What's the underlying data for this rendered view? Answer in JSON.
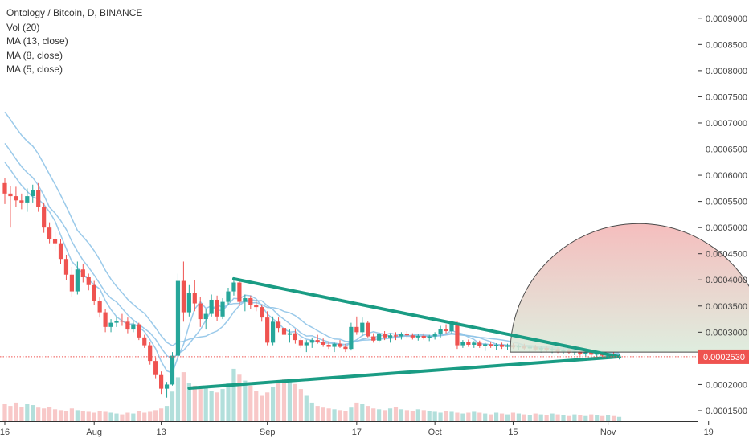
{
  "chart_data": {
    "type": "candlestick",
    "title": "Ontology / Bitcoin, D, BINANCE",
    "indicators": [
      "Vol (20)",
      "MA (13, close)",
      "MA (8, close)",
      "MA (5, close)"
    ],
    "y_ticks": [
      "0.0009000",
      "0.0008500",
      "0.0008000",
      "0.0007500",
      "0.0007000",
      "0.0006500",
      "0.0006000",
      "0.0005500",
      "0.0005000",
      "0.0004500",
      "0.0004000",
      "0.0003500",
      "0.0003000",
      "0.0002500",
      "0.0002000",
      "0.0001500"
    ],
    "y_tick_values": [
      0.0009,
      0.00085,
      0.0008,
      0.00075,
      0.0007,
      0.00065,
      0.0006,
      0.00055,
      0.0005,
      0.00045,
      0.0004,
      0.00035,
      0.0003,
      0.00025,
      0.0002,
      0.00015
    ],
    "ylim": [
      0.00013,
      0.000935
    ],
    "x_ticks": [
      {
        "label": "16",
        "day": 0
      },
      {
        "label": "Aug",
        "day": 16
      },
      {
        "label": "13",
        "day": 28
      },
      {
        "label": "Sep",
        "day": 47
      },
      {
        "label": "17",
        "day": 63
      },
      {
        "label": "Oct",
        "day": 77
      },
      {
        "label": "15",
        "day": 91
      },
      {
        "label": "Nov",
        "day": 108
      },
      {
        "label": "19",
        "day": 126
      }
    ],
    "last_price_label": "0.0002530",
    "last_price": 0.000253,
    "colors": {
      "up": "#26a69a",
      "down": "#ef5350",
      "ma": "#90c4e8",
      "trend": "#1a9c84",
      "last": "#ef5350",
      "label_bg": "#ef5350",
      "circle_top": "#f3b2b2",
      "circle_bottom": "#d9ead9",
      "circle_stroke": "#4a4a4a",
      "vol_up": "#b2dfdb",
      "vol_down": "#f8c8c8"
    },
    "triangle": {
      "upper": [
        [
          41,
          0.000402
        ],
        [
          110,
          0.000253
        ]
      ],
      "lower": [
        [
          33,
          0.000193
        ],
        [
          110,
          0.000253
        ]
      ]
    },
    "half_circle": {
      "center_day": 113.5,
      "center_value": 0.000262,
      "radius_days": 23
    },
    "candles": [
      [
        0.000585,
        0.000595,
        0.000545,
        0.000565
      ],
      [
        0.000565,
        0.00058,
        0.0005,
        0.00056
      ],
      [
        0.00056,
        0.000578,
        0.00054,
        0.000552
      ],
      [
        0.000552,
        0.000565,
        0.000535,
        0.000548
      ],
      [
        0.000548,
        0.000575,
        0.00053,
        0.00056
      ],
      [
        0.00056,
        0.000582,
        0.000548,
        0.000572
      ],
      [
        0.000572,
        0.000585,
        0.00053,
        0.00054
      ],
      [
        0.00054,
        0.000548,
        0.00049,
        0.0005
      ],
      [
        0.0005,
        0.00051,
        0.00047,
        0.000478
      ],
      [
        0.000478,
        0.000492,
        0.000455,
        0.00047
      ],
      [
        0.00047,
        0.000478,
        0.00043,
        0.00044
      ],
      [
        0.00044,
        0.000448,
        0.0004,
        0.00041
      ],
      [
        0.00041,
        0.000425,
        0.000368,
        0.000378
      ],
      [
        0.000378,
        0.000435,
        0.000372,
        0.00042
      ],
      [
        0.00042,
        0.00043,
        0.000395,
        0.000405
      ],
      [
        0.000405,
        0.000412,
        0.00038,
        0.00039
      ],
      [
        0.00039,
        0.000398,
        0.000352,
        0.00036
      ],
      [
        0.00036,
        0.000368,
        0.000328,
        0.000338
      ],
      [
        0.000338,
        0.000345,
        0.0003,
        0.00031
      ],
      [
        0.00031,
        0.000325,
        0.0003,
        0.000318
      ],
      [
        0.000318,
        0.00033,
        0.00031,
        0.000322
      ],
      [
        0.000322,
        0.000335,
        0.000312,
        0.00032
      ],
      [
        0.00032,
        0.000328,
        0.000298,
        0.000305
      ],
      [
        0.000305,
        0.000322,
        0.0003,
        0.000315
      ],
      [
        0.000315,
        0.000318,
        0.000285,
        0.00029
      ],
      [
        0.00029,
        0.000295,
        0.00027,
        0.000275
      ],
      [
        0.000275,
        0.000282,
        0.000238,
        0.000245
      ],
      [
        0.000245,
        0.000252,
        0.000212,
        0.000218
      ],
      [
        0.000218,
        0.000225,
        0.000182,
        0.000192
      ],
      [
        0.000192,
        0.000205,
        0.000175,
        0.0002
      ],
      [
        0.0002,
        0.000262,
        0.000198,
        0.000255
      ],
      [
        0.000255,
        0.000412,
        0.00025,
        0.000398
      ],
      [
        0.000398,
        0.000435,
        0.00032,
        0.000338
      ],
      [
        0.000338,
        0.00039,
        0.00033,
        0.000375
      ],
      [
        0.000375,
        0.0004,
        0.00034,
        0.000355
      ],
      [
        0.000355,
        0.000368,
        0.00031,
        0.000325
      ],
      [
        0.000325,
        0.000345,
        0.000305,
        0.000335
      ],
      [
        0.000335,
        0.000372,
        0.00033,
        0.000362
      ],
      [
        0.000362,
        0.00037,
        0.000322,
        0.00033
      ],
      [
        0.00033,
        0.000365,
        0.000325,
        0.000358
      ],
      [
        0.000358,
        0.000385,
        0.000352,
        0.000378
      ],
      [
        0.000378,
        0.000402,
        0.00037,
        0.000395
      ],
      [
        0.000395,
        0.000402,
        0.00035,
        0.000358
      ],
      [
        0.000358,
        0.000372,
        0.00034,
        0.000365
      ],
      [
        0.000365,
        0.00037,
        0.000345,
        0.000352
      ],
      [
        0.000352,
        0.000362,
        0.00034,
        0.000348
      ],
      [
        0.000348,
        0.000352,
        0.00032,
        0.000328
      ],
      [
        0.000328,
        0.00034,
        0.000275,
        0.00028
      ],
      [
        0.00028,
        0.00033,
        0.000275,
        0.00032
      ],
      [
        0.00032,
        0.000328,
        0.0003,
        0.000308
      ],
      [
        0.000308,
        0.000318,
        0.00029,
        0.000295
      ],
      [
        0.000295,
        0.000305,
        0.00028,
        0.000298
      ],
      [
        0.000298,
        0.000305,
        0.000278,
        0.000285
      ],
      [
        0.000285,
        0.00029,
        0.00027,
        0.000275
      ],
      [
        0.000275,
        0.000285,
        0.000262,
        0.00028
      ],
      [
        0.00028,
        0.00029,
        0.00027,
        0.000285
      ],
      [
        0.000285,
        0.000295,
        0.000278,
        0.000282
      ],
      [
        0.000282,
        0.000288,
        0.000272,
        0.000276
      ],
      [
        0.000276,
        0.000282,
        0.000268,
        0.000272
      ],
      [
        0.000272,
        0.00028,
        0.000262,
        0.000278
      ],
      [
        0.000278,
        0.000285,
        0.00027,
        0.000272
      ],
      [
        0.000272,
        0.000278,
        0.000262,
        0.000268
      ],
      [
        0.000268,
        0.000318,
        0.000265,
        0.00031
      ],
      [
        0.00031,
        0.00033,
        0.000295,
        0.0003
      ],
      [
        0.0003,
        0.000328,
        0.000292,
        0.000318
      ],
      [
        0.000318,
        0.000322,
        0.00029,
        0.000292
      ],
      [
        0.000292,
        0.000298,
        0.00028,
        0.000284
      ],
      [
        0.000284,
        0.0003,
        0.00028,
        0.000296
      ],
      [
        0.000296,
        0.000302,
        0.000285,
        0.00029
      ],
      [
        0.00029,
        0.000298,
        0.00028,
        0.000294
      ],
      [
        0.000294,
        0.0003,
        0.000285,
        0.000292
      ],
      [
        0.000292,
        0.0003,
        0.000286,
        0.000296
      ],
      [
        0.000296,
        0.000302,
        0.000288,
        0.000294
      ],
      [
        0.000294,
        0.000298,
        0.000286,
        0.00029
      ],
      [
        0.00029,
        0.000296,
        0.000284,
        0.000293
      ],
      [
        0.000293,
        0.000298,
        0.000286,
        0.000289
      ],
      [
        0.000289,
        0.000295,
        0.000283,
        0.000292
      ],
      [
        0.000292,
        0.0003,
        0.000286,
        0.000296
      ],
      [
        0.000296,
        0.000312,
        0.00029,
        0.000306
      ],
      [
        0.000306,
        0.000315,
        0.000298,
        0.000302
      ],
      [
        0.000302,
        0.000322,
        0.000298,
        0.000318
      ],
      [
        0.000318,
        0.00032,
        0.000268,
        0.000275
      ],
      [
        0.000275,
        0.000285,
        0.00027,
        0.000282
      ],
      [
        0.000282,
        0.000286,
        0.000272,
        0.000276
      ],
      [
        0.000276,
        0.000283,
        0.00027,
        0.00028
      ],
      [
        0.00028,
        0.000284,
        0.00027,
        0.000274
      ],
      [
        0.000274,
        0.00028,
        0.000264,
        0.000277
      ],
      [
        0.000277,
        0.000281,
        0.00027,
        0.000273
      ],
      [
        0.000273,
        0.000279,
        0.000266,
        0.000276
      ],
      [
        0.000276,
        0.00028,
        0.000268,
        0.000272
      ],
      [
        0.000272,
        0.000278,
        0.000266,
        0.000275
      ],
      [
        0.000275,
        0.000279,
        0.000268,
        0.000271
      ],
      [
        0.000271,
        0.000277,
        0.000265,
        0.000274
      ],
      [
        0.000274,
        0.000278,
        0.000266,
        0.000269
      ],
      [
        0.000269,
        0.000275,
        0.000263,
        0.000272
      ],
      [
        0.000272,
        0.000276,
        0.000264,
        0.000267
      ],
      [
        0.000267,
        0.000273,
        0.000261,
        0.00027
      ],
      [
        0.00027,
        0.000274,
        0.000262,
        0.000265
      ],
      [
        0.000265,
        0.000272,
        0.00026,
        0.000268
      ],
      [
        0.000268,
        0.000272,
        0.00026,
        0.000263
      ],
      [
        0.000263,
        0.00027,
        0.000258,
        0.000266
      ],
      [
        0.000266,
        0.00027,
        0.000258,
        0.000261
      ],
      [
        0.000261,
        0.000268,
        0.000256,
        0.000264
      ],
      [
        0.000264,
        0.000268,
        0.000255,
        0.000259
      ],
      [
        0.000259,
        0.000265,
        0.000254,
        0.000262
      ],
      [
        0.000262,
        0.000266,
        0.000254,
        0.000257
      ],
      [
        0.000257,
        0.000264,
        0.000252,
        0.00026
      ],
      [
        0.00026,
        0.000264,
        0.000251,
        0.000255
      ],
      [
        0.000255,
        0.000261,
        0.00025,
        0.000258
      ],
      [
        0.000258,
        0.000262,
        0.00025,
        0.000253
      ],
      [
        0.000253,
        0.000258,
        0.000248,
        0.000253
      ]
    ],
    "volumes": [
      0.2,
      0.18,
      0.22,
      0.17,
      0.2,
      0.19,
      0.16,
      0.15,
      0.17,
      0.14,
      0.13,
      0.12,
      0.15,
      0.13,
      0.12,
      0.11,
      0.1,
      0.12,
      0.11,
      0.1,
      0.09,
      0.08,
      0.1,
      0.09,
      0.12,
      0.1,
      0.11,
      0.13,
      0.15,
      0.18,
      0.35,
      0.52,
      0.58,
      0.45,
      0.42,
      0.38,
      0.4,
      0.36,
      0.34,
      0.38,
      0.45,
      0.62,
      0.55,
      0.48,
      0.42,
      0.36,
      0.3,
      0.34,
      0.4,
      0.45,
      0.5,
      0.48,
      0.44,
      0.38,
      0.3,
      0.22,
      0.18,
      0.16,
      0.15,
      0.14,
      0.13,
      0.12,
      0.16,
      0.22,
      0.2,
      0.18,
      0.15,
      0.14,
      0.13,
      0.15,
      0.17,
      0.14,
      0.13,
      0.12,
      0.14,
      0.13,
      0.12,
      0.11,
      0.1,
      0.12,
      0.11,
      0.1,
      0.09,
      0.1,
      0.11,
      0.1,
      0.09,
      0.08,
      0.1,
      0.09,
      0.08,
      0.1,
      0.09,
      0.08,
      0.07,
      0.09,
      0.08,
      0.07,
      0.09,
      0.08,
      0.07,
      0.06,
      0.08,
      0.07,
      0.06,
      0.08,
      0.07,
      0.06,
      0.07,
      0.06,
      0.05
    ]
  }
}
